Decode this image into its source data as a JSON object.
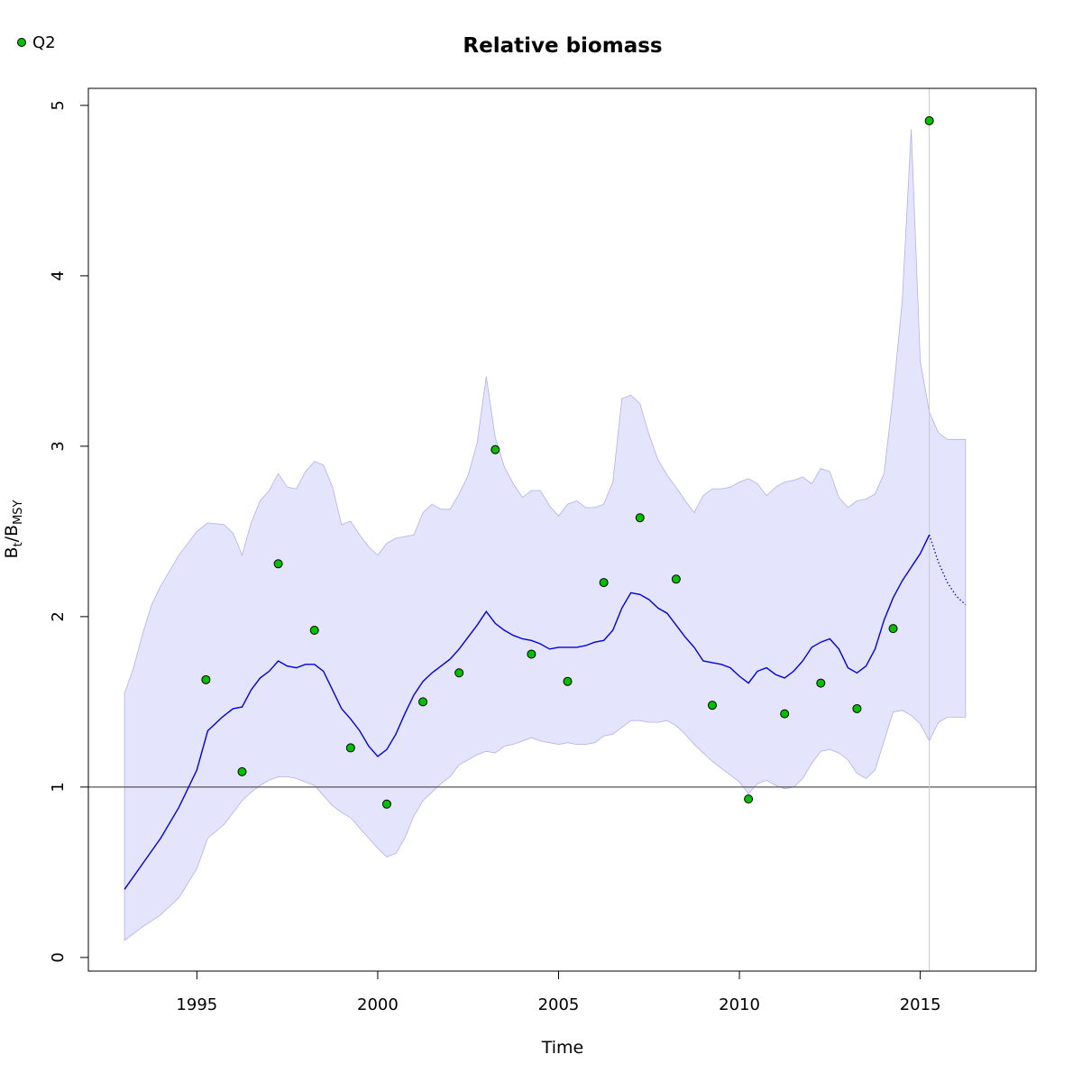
{
  "chart_data": {
    "type": "line",
    "title": "Relative biomass",
    "xlabel": "Time",
    "ylabel": "Bt/BMSY",
    "ylabel_main": "B",
    "ylabel_sub1": "t",
    "ylabel_sep": "/B",
    "ylabel_sub2": "MSY",
    "xlim": [
      1992,
      2018.2
    ],
    "ylim": [
      -0.08,
      5.1
    ],
    "x_ticks": [
      1995,
      2000,
      2005,
      2010,
      2015
    ],
    "x_tick_labels": [
      "1995",
      "2000",
      "2005",
      "2010",
      "2015"
    ],
    "y_ticks": [
      0,
      1,
      2,
      3,
      4,
      5
    ],
    "y_tick_labels": [
      "0",
      "1",
      "2",
      "3",
      "4",
      "5"
    ],
    "reference_line_y": 1,
    "last_observation_x": 2015.25,
    "colors": {
      "median_line": "#0000dd",
      "ci_fill": "#e4e4fc",
      "ci_edge": "#b0b0f0",
      "points": "#00c000",
      "reference_line": "#555555",
      "vertical_line": "#c8c8c8"
    },
    "legend": {
      "position": "top-left",
      "entries": [
        {
          "label": "Q2",
          "color": "#00c000"
        }
      ]
    },
    "median": {
      "x": [
        1993.0,
        1993.5,
        1994.0,
        1994.5,
        1995.0,
        1995.3,
        1995.7,
        1996.0,
        1996.25,
        1996.5,
        1996.75,
        1997.0,
        1997.25,
        1997.5,
        1997.75,
        1998.0,
        1998.25,
        1998.5,
        1998.75,
        1999.0,
        1999.25,
        1999.5,
        1999.75,
        2000.0,
        2000.25,
        2000.5,
        2000.75,
        2001.0,
        2001.25,
        2001.5,
        2001.75,
        2002.0,
        2002.25,
        2002.5,
        2002.75,
        2003.0,
        2003.25,
        2003.5,
        2003.75,
        2004.0,
        2004.25,
        2004.5,
        2004.75,
        2005.0,
        2005.25,
        2005.5,
        2005.75,
        2006.0,
        2006.25,
        2006.5,
        2006.75,
        2007.0,
        2007.25,
        2007.5,
        2007.75,
        2008.0,
        2008.25,
        2008.5,
        2008.75,
        2009.0,
        2009.25,
        2009.5,
        2009.75,
        2010.0,
        2010.25,
        2010.5,
        2010.75,
        2011.0,
        2011.25,
        2011.5,
        2011.75,
        2012.0,
        2012.25,
        2012.5,
        2012.75,
        2013.0,
        2013.25,
        2013.5,
        2013.75,
        2014.0,
        2014.25,
        2014.5,
        2014.75,
        2015.0,
        2015.25
      ],
      "y": [
        0.4,
        0.55,
        0.7,
        0.88,
        1.1,
        1.33,
        1.41,
        1.46,
        1.47,
        1.57,
        1.64,
        1.68,
        1.74,
        1.71,
        1.7,
        1.72,
        1.72,
        1.68,
        1.57,
        1.46,
        1.4,
        1.33,
        1.24,
        1.18,
        1.22,
        1.31,
        1.43,
        1.54,
        1.62,
        1.67,
        1.71,
        1.75,
        1.81,
        1.88,
        1.95,
        2.03,
        1.96,
        1.92,
        1.89,
        1.87,
        1.86,
        1.84,
        1.81,
        1.82,
        1.82,
        1.82,
        1.83,
        1.85,
        1.86,
        1.92,
        2.05,
        2.14,
        2.13,
        2.1,
        2.05,
        2.02,
        1.95,
        1.88,
        1.82,
        1.74,
        1.73,
        1.72,
        1.7,
        1.65,
        1.61,
        1.68,
        1.7,
        1.66,
        1.64,
        1.68,
        1.74,
        1.82,
        1.85,
        1.87,
        1.81,
        1.7,
        1.67,
        1.71,
        1.81,
        1.98,
        2.11,
        2.21,
        2.29,
        2.37,
        2.48
      ]
    },
    "forecast": {
      "x": [
        2015.25,
        2015.5,
        2015.75,
        2016.0,
        2016.25
      ],
      "y": [
        2.48,
        2.32,
        2.2,
        2.12,
        2.07
      ]
    },
    "ci_upper": {
      "x": [
        1993.0,
        1993.25,
        1993.5,
        1993.75,
        1994.0,
        1994.5,
        1995.0,
        1995.3,
        1995.75,
        1996.0,
        1996.25,
        1996.5,
        1996.75,
        1997.0,
        1997.25,
        1997.5,
        1997.75,
        1998.0,
        1998.25,
        1998.5,
        1998.75,
        1999.0,
        1999.25,
        1999.5,
        1999.75,
        2000.0,
        2000.25,
        2000.5,
        2000.75,
        2001.0,
        2001.25,
        2001.5,
        2001.75,
        2002.0,
        2002.25,
        2002.5,
        2002.75,
        2003.0,
        2003.25,
        2003.5,
        2003.75,
        2004.0,
        2004.25,
        2004.5,
        2004.75,
        2005.0,
        2005.25,
        2005.5,
        2005.75,
        2006.0,
        2006.25,
        2006.5,
        2006.75,
        2007.0,
        2007.25,
        2007.5,
        2007.75,
        2008.0,
        2008.25,
        2008.5,
        2008.75,
        2009.0,
        2009.25,
        2009.5,
        2009.75,
        2010.0,
        2010.25,
        2010.5,
        2010.75,
        2011.0,
        2011.25,
        2011.5,
        2011.75,
        2012.0,
        2012.25,
        2012.5,
        2012.75,
        2013.0,
        2013.25,
        2013.5,
        2013.75,
        2014.0,
        2014.25,
        2014.5,
        2014.75,
        2015.0,
        2015.25,
        2015.5,
        2015.75,
        2016.0,
        2016.25
      ],
      "y": [
        1.55,
        1.7,
        1.9,
        2.07,
        2.18,
        2.36,
        2.5,
        2.55,
        2.54,
        2.49,
        2.36,
        2.55,
        2.68,
        2.74,
        2.84,
        2.76,
        2.75,
        2.85,
        2.91,
        2.89,
        2.76,
        2.54,
        2.56,
        2.48,
        2.41,
        2.36,
        2.43,
        2.46,
        2.47,
        2.48,
        2.61,
        2.66,
        2.63,
        2.63,
        2.72,
        2.83,
        3.02,
        3.41,
        3.05,
        2.88,
        2.78,
        2.7,
        2.74,
        2.74,
        2.65,
        2.59,
        2.66,
        2.68,
        2.64,
        2.64,
        2.66,
        2.79,
        3.28,
        3.3,
        3.25,
        3.07,
        2.92,
        2.83,
        2.76,
        2.68,
        2.61,
        2.71,
        2.75,
        2.75,
        2.76,
        2.79,
        2.81,
        2.78,
        2.71,
        2.76,
        2.79,
        2.8,
        2.82,
        2.78,
        2.87,
        2.85,
        2.7,
        2.64,
        2.68,
        2.69,
        2.72,
        2.84,
        3.3,
        3.85,
        4.86,
        3.5,
        3.2,
        3.08,
        3.04,
        3.04,
        3.04
      ]
    },
    "ci_lower": {
      "x": [
        1993.0,
        1993.5,
        1994.0,
        1994.5,
        1995.0,
        1995.3,
        1995.75,
        1996.0,
        1996.25,
        1996.5,
        1996.75,
        1997.0,
        1997.25,
        1997.5,
        1997.75,
        1998.0,
        1998.25,
        1998.5,
        1998.75,
        1999.0,
        1999.25,
        1999.5,
        1999.75,
        2000.0,
        2000.25,
        2000.5,
        2000.75,
        2001.0,
        2001.25,
        2001.5,
        2001.75,
        2002.0,
        2002.25,
        2002.5,
        2002.75,
        2003.0,
        2003.25,
        2003.5,
        2003.75,
        2004.0,
        2004.25,
        2004.5,
        2004.75,
        2005.0,
        2005.25,
        2005.5,
        2005.75,
        2006.0,
        2006.25,
        2006.5,
        2006.75,
        2007.0,
        2007.25,
        2007.5,
        2007.75,
        2008.0,
        2008.25,
        2008.5,
        2008.75,
        2009.0,
        2009.25,
        2009.5,
        2009.75,
        2010.0,
        2010.25,
        2010.5,
        2010.75,
        2011.0,
        2011.25,
        2011.5,
        2011.75,
        2012.0,
        2012.25,
        2012.5,
        2012.75,
        2013.0,
        2013.25,
        2013.5,
        2013.75,
        2014.0,
        2014.25,
        2014.5,
        2014.75,
        2015.0,
        2015.25,
        2015.5,
        2015.75,
        2016.0,
        2016.25
      ],
      "y": [
        0.1,
        0.18,
        0.25,
        0.35,
        0.52,
        0.7,
        0.78,
        0.85,
        0.92,
        0.97,
        1.01,
        1.04,
        1.06,
        1.06,
        1.05,
        1.03,
        1.01,
        0.95,
        0.89,
        0.85,
        0.82,
        0.76,
        0.7,
        0.64,
        0.59,
        0.61,
        0.7,
        0.83,
        0.92,
        0.97,
        1.02,
        1.06,
        1.13,
        1.16,
        1.19,
        1.21,
        1.2,
        1.24,
        1.25,
        1.27,
        1.29,
        1.27,
        1.26,
        1.25,
        1.26,
        1.25,
        1.25,
        1.26,
        1.3,
        1.31,
        1.35,
        1.39,
        1.39,
        1.38,
        1.38,
        1.39,
        1.36,
        1.31,
        1.25,
        1.2,
        1.15,
        1.11,
        1.07,
        1.03,
        0.96,
        1.02,
        1.04,
        1.01,
        0.99,
        1.0,
        1.05,
        1.14,
        1.21,
        1.22,
        1.2,
        1.16,
        1.08,
        1.05,
        1.1,
        1.27,
        1.44,
        1.45,
        1.42,
        1.37,
        1.27,
        1.38,
        1.41,
        1.41,
        1.41
      ]
    },
    "observations": {
      "name": "Q2",
      "x": [
        1995.25,
        1996.25,
        1997.25,
        1998.25,
        1999.25,
        2000.25,
        2001.25,
        2002.25,
        2003.25,
        2004.25,
        2005.25,
        2006.25,
        2007.25,
        2008.25,
        2009.25,
        2010.25,
        2011.25,
        2012.25,
        2013.25,
        2014.25,
        2015.25
      ],
      "y": [
        1.63,
        1.09,
        2.31,
        1.92,
        1.23,
        0.9,
        1.5,
        1.67,
        2.98,
        1.78,
        1.62,
        2.2,
        2.58,
        2.22,
        1.48,
        0.93,
        1.43,
        1.61,
        1.46,
        1.93,
        4.91
      ]
    }
  }
}
